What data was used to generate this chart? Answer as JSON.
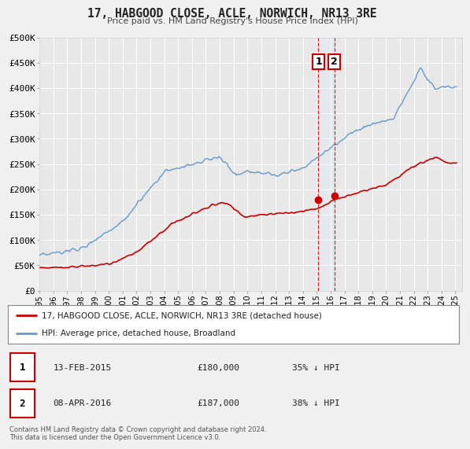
{
  "title": "17, HABGOOD CLOSE, ACLE, NORWICH, NR13 3RE",
  "subtitle": "Price paid vs. HM Land Registry's House Price Index (HPI)",
  "red_label": "17, HABGOOD CLOSE, ACLE, NORWICH, NR13 3RE (detached house)",
  "blue_label": "HPI: Average price, detached house, Broadland",
  "sale1_date": "13-FEB-2015",
  "sale1_price": "£180,000",
  "sale1_pct": "35% ↓ HPI",
  "sale2_date": "08-APR-2016",
  "sale2_price": "£187,000",
  "sale2_pct": "38% ↓ HPI",
  "copyright": "Contains HM Land Registry data © Crown copyright and database right 2024.\nThis data is licensed under the Open Government Licence v3.0.",
  "ylim": [
    0,
    500000
  ],
  "yticks": [
    0,
    50000,
    100000,
    150000,
    200000,
    250000,
    300000,
    350000,
    400000,
    450000,
    500000
  ],
  "ytick_labels": [
    "£0",
    "£50K",
    "£100K",
    "£150K",
    "£200K",
    "£250K",
    "£300K",
    "£350K",
    "£400K",
    "£450K",
    "£500K"
  ],
  "xlim_start": 1995.0,
  "xlim_end": 2025.5,
  "vline1_x": 2015.12,
  "vline2_x": 2016.27,
  "sale1_x": 2015.12,
  "sale1_y": 180000,
  "sale2_x": 2016.27,
  "sale2_y": 187000,
  "red_color": "#cc0000",
  "blue_color": "#6699cc",
  "vline_color": "#dd2222",
  "shade_color": "#ddeeff",
  "plot_bg": "#e8e8e8",
  "grid_color": "#ffffff",
  "fig_bg": "#f0f0f0"
}
